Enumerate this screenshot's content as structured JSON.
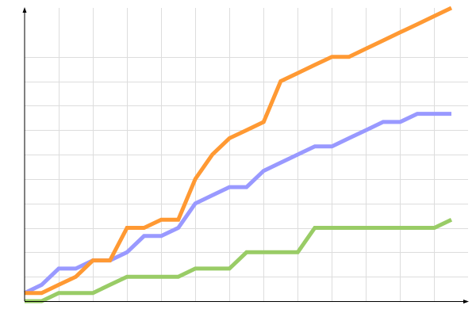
{
  "chart_data": {
    "type": "line",
    "title": "",
    "xlabel": "",
    "ylabel": "",
    "x": [
      0,
      1,
      2,
      3,
      4,
      5,
      6,
      7,
      8,
      9,
      10,
      11,
      12,
      13,
      14,
      15,
      16,
      17,
      18,
      19,
      20,
      21,
      22,
      23,
      24,
      25
    ],
    "xlim": [
      0,
      25
    ],
    "ylim": [
      0,
      36
    ],
    "grid": true,
    "legend": "none",
    "series": [
      {
        "color": "#ff9933",
        "values": [
          1,
          1,
          2,
          3,
          5,
          5,
          9,
          9,
          10,
          10,
          15,
          18,
          20,
          21,
          22,
          27,
          28,
          29,
          30,
          30,
          31,
          32,
          33,
          34,
          35,
          36
        ]
      },
      {
        "color": "#9999ff",
        "values": [
          1,
          2,
          4,
          4,
          5,
          5,
          6,
          8,
          8,
          9,
          12,
          13,
          14,
          14,
          16,
          17,
          18,
          19,
          19,
          20,
          21,
          22,
          22,
          23,
          23,
          23
        ]
      },
      {
        "color": "#99cc66",
        "values": [
          0,
          0,
          1,
          1,
          1,
          2,
          3,
          3,
          3,
          3,
          4,
          4,
          4,
          6,
          6,
          6,
          6,
          9,
          9,
          9,
          9,
          9,
          9,
          9,
          9,
          10
        ]
      }
    ]
  }
}
